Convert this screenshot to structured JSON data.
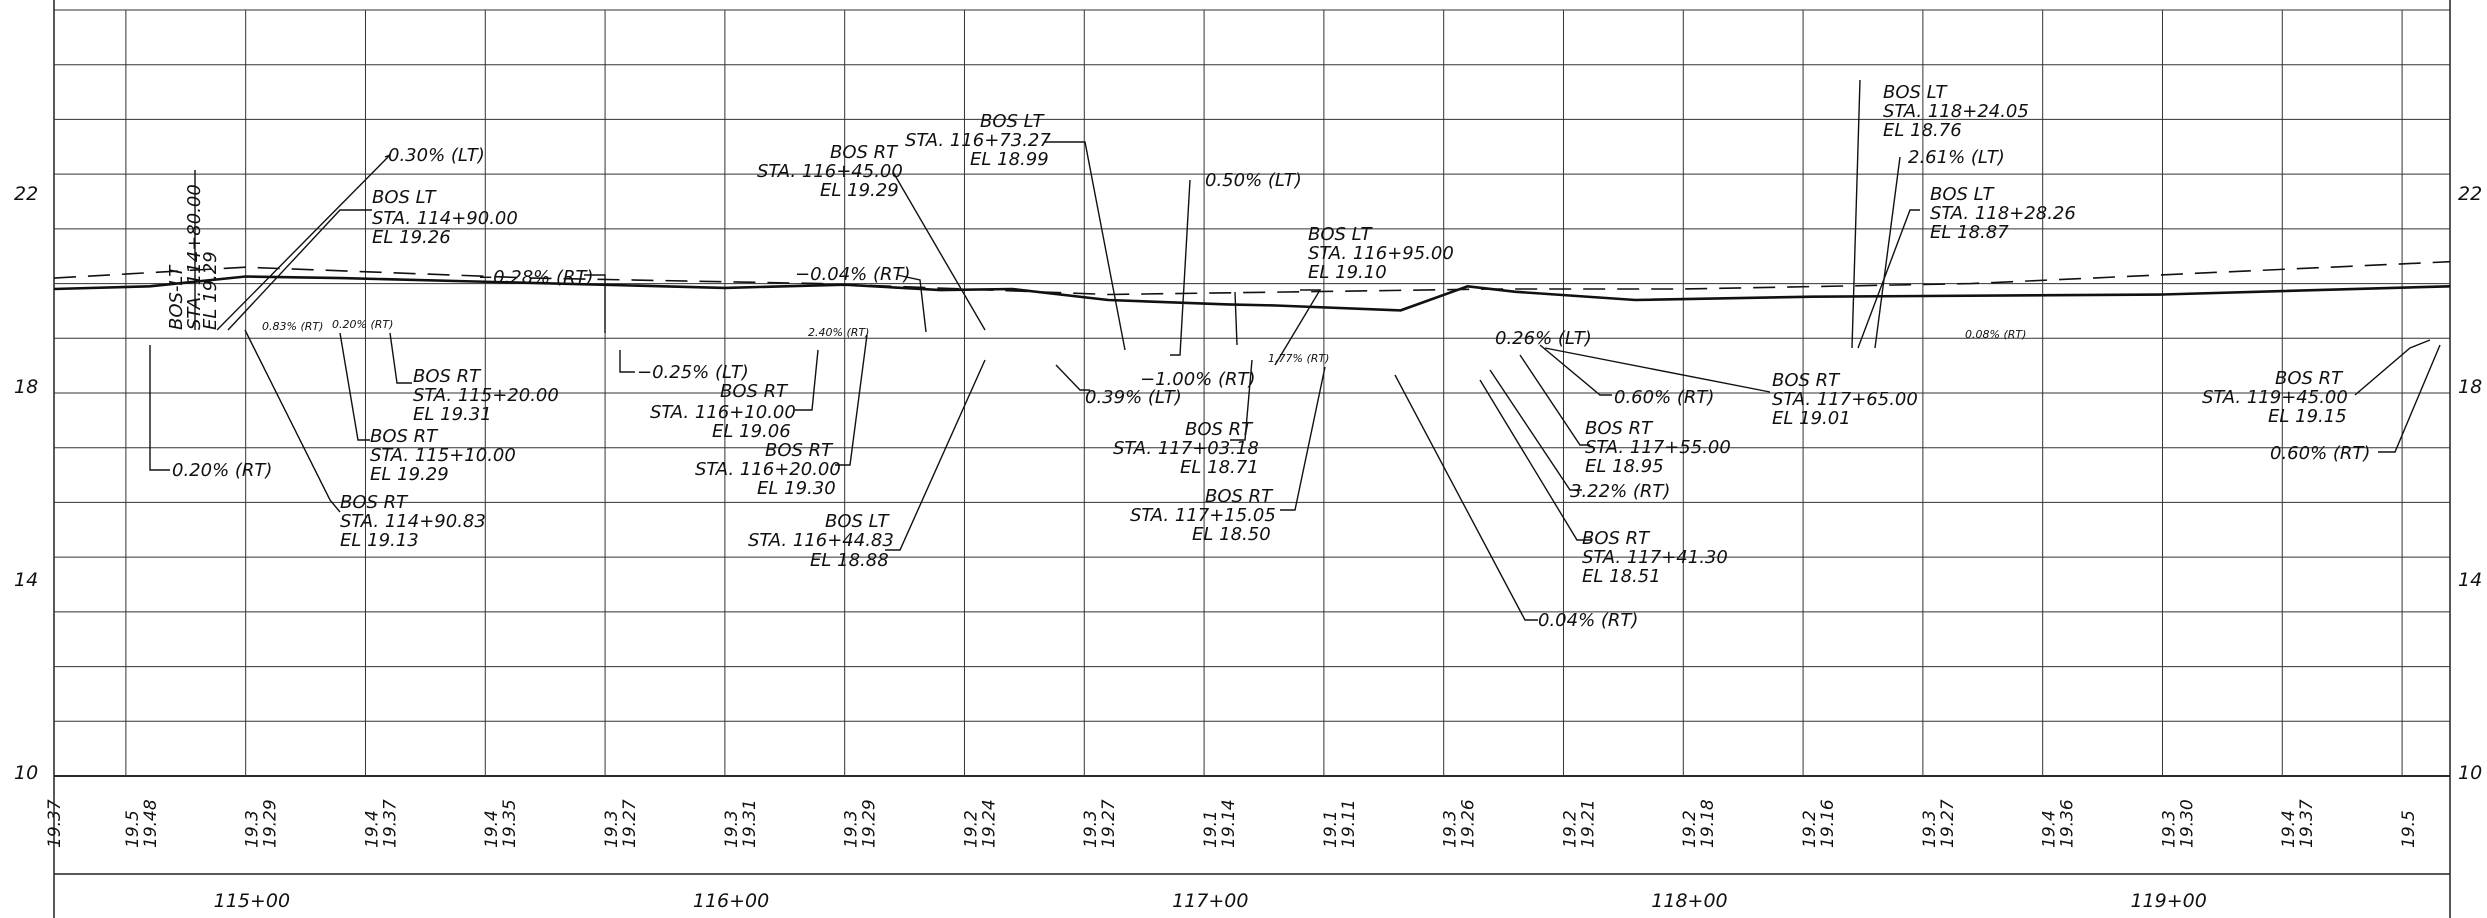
{
  "profile": {
    "y_axis": {
      "min": 10,
      "max": 24,
      "ticks": [
        22,
        18,
        14,
        10
      ],
      "tick_labels": [
        "22",
        "18",
        "14",
        "10"
      ]
    },
    "x_axis": {
      "start": 11460,
      "end": 11960,
      "ticks": [
        11500,
        11600,
        11700,
        11800,
        11900
      ],
      "tick_labels": [
        "115+00",
        "116+00",
        "117+00",
        "118+00",
        "119+00"
      ]
    },
    "proposed_line": [
      [
        11460,
        18.9
      ],
      [
        11480,
        18.95
      ],
      [
        11500,
        19.13
      ],
      [
        11520,
        19.1
      ],
      [
        11600,
        18.92
      ],
      [
        11625,
        18.98
      ],
      [
        11645,
        18.88
      ],
      [
        11660,
        18.9
      ],
      [
        11680,
        18.7
      ],
      [
        11705,
        18.62
      ],
      [
        11715,
        18.6
      ],
      [
        11741,
        18.51
      ],
      [
        11755,
        18.95
      ],
      [
        11765,
        18.85
      ],
      [
        11790,
        18.7
      ],
      [
        11827,
        18.76
      ],
      [
        11900,
        18.8
      ],
      [
        11960,
        18.95
      ]
    ],
    "existing_line": [
      [
        11460,
        19.1
      ],
      [
        11500,
        19.3
      ],
      [
        11560,
        19.1
      ],
      [
        11620,
        19.0
      ],
      [
        11680,
        18.8
      ],
      [
        11720,
        18.85
      ],
      [
        11760,
        18.9
      ],
      [
        11800,
        18.9
      ],
      [
        11860,
        19.0
      ],
      [
        11960,
        19.4
      ]
    ],
    "elevation_rows": [
      {
        "station": "11460",
        "existing": "",
        "proposed": "19.37"
      },
      {
        "station": "11480",
        "existing": "19.5",
        "proposed": "19.48"
      },
      {
        "station": "11505",
        "existing": "19.3",
        "proposed": "19.29"
      },
      {
        "station": "11530",
        "existing": "19.4",
        "proposed": "19.37"
      },
      {
        "station": "11555",
        "existing": "19.4",
        "proposed": "19.35"
      },
      {
        "station": "11580",
        "existing": "19.3",
        "proposed": "19.27"
      },
      {
        "station": "11605",
        "existing": "19.3",
        "proposed": "19.31"
      },
      {
        "station": "11630",
        "existing": "19.3",
        "proposed": "19.29"
      },
      {
        "station": "11655",
        "existing": "19.2",
        "proposed": "19.24"
      },
      {
        "station": "11680",
        "existing": "19.3",
        "proposed": "19.27"
      },
      {
        "station": "11705",
        "existing": "19.1",
        "proposed": "19.14"
      },
      {
        "station": "11730",
        "existing": "19.1",
        "proposed": "19.11"
      },
      {
        "station": "11755",
        "existing": "19.3",
        "proposed": "19.26"
      },
      {
        "station": "11780",
        "existing": "19.2",
        "proposed": "19.21"
      },
      {
        "station": "11805",
        "existing": "19.2",
        "proposed": "19.18"
      },
      {
        "station": "11830",
        "existing": "19.2",
        "proposed": "19.16"
      },
      {
        "station": "11855",
        "existing": "19.3",
        "proposed": "19.27"
      },
      {
        "station": "11880",
        "existing": "19.4",
        "proposed": "19.36"
      },
      {
        "station": "11905",
        "existing": "19.3",
        "proposed": "19.30"
      },
      {
        "station": "11930",
        "existing": "19.4",
        "proposed": "19.37"
      },
      {
        "station": "11955",
        "existing": "19.5",
        "proposed": ""
      }
    ],
    "annotations": {
      "bos_lt_11480": {
        "title": "BOS-LT",
        "sta": "STA. 114+80.00",
        "el": "EL 19.29"
      },
      "slope_030": "0.30% (LT)",
      "bos_lt_11490": {
        "title": "BOS LT",
        "sta": "STA. 114+90.00",
        "el": "EL 19.26"
      },
      "slope_028": "−0.28% (RT)",
      "slope_083": "0.83% (RT)",
      "slope_020_small": "0.20% (RT)",
      "bos_rt_11520": {
        "title": "BOS RT",
        "sta": "STA. 115+20.00",
        "el": "EL 19.31"
      },
      "bos_rt_11510": {
        "title": "BOS RT",
        "sta": "STA. 115+10.00",
        "el": "EL 19.29"
      },
      "slope_020": "0.20% (RT)",
      "bos_rt_114_90_83": {
        "title": "BOS RT",
        "sta": "STA. 114+90.83",
        "el": "EL 19.13"
      },
      "slope_004_rt": "−0.04% (RT)",
      "slope_025": "−0.25% (LT)",
      "slope_240": "2.40% (RT)",
      "bos_rt_11610": {
        "title": "BOS RT",
        "sta": "STA. 116+10.00",
        "el": "EL 19.06"
      },
      "bos_rt_11620": {
        "title": "BOS RT",
        "sta": "STA. 116+20.00",
        "el": "EL 19.30"
      },
      "bos_rt_11645": {
        "title": "BOS RT",
        "sta": "STA. 116+45.00",
        "el": "EL 19.29"
      },
      "bos_lt_11673": {
        "title": "BOS LT",
        "sta": "STA. 116+73.27",
        "el": "EL 18.99"
      },
      "bos_lt_116_44_83": {
        "title": "BOS LT",
        "sta": "STA. 116+44.83",
        "el": "EL 18.88"
      },
      "slope_050": "0.50% (LT)",
      "bos_lt_11695": {
        "title": "BOS LT",
        "sta": "STA. 116+95.00",
        "el": "EL 19.10"
      },
      "slope_039": "0.39% (LT)",
      "slope_100": "−1.00% (RT)",
      "slope_177": "1.77% (RT)",
      "bos_rt_11703": {
        "title": "BOS RT",
        "sta": "STA. 117+03.18",
        "el": "EL 18.71"
      },
      "bos_rt_11715": {
        "title": "BOS RT",
        "sta": "STA. 117+15.05",
        "el": "EL 18.50"
      },
      "slope_026": "0.26% (LT)",
      "slope_060_rt": "0.60% (RT)",
      "bos_rt_11755": {
        "title": "BOS RT",
        "sta": "STA. 117+55.00",
        "el": "EL 18.95"
      },
      "slope_322": "3.22% (RT)",
      "bos_rt_11741": {
        "title": "BOS RT",
        "sta": "STA. 117+41.30",
        "el": "EL 18.51"
      },
      "slope_004_bottom": "0.04% (RT)",
      "bos_rt_11765": {
        "title": "BOS RT",
        "sta": "STA. 117+65.00",
        "el": "EL 19.01"
      },
      "bos_lt_11824": {
        "title": "BOS LT",
        "sta": "STA. 118+24.05",
        "el": "EL 18.76"
      },
      "slope_261": "2.61% (LT)",
      "bos_lt_11828": {
        "title": "BOS LT",
        "sta": "STA. 118+28.26",
        "el": "EL 18.87"
      },
      "slope_008": "0.08% (RT)",
      "bos_rt_11945": {
        "title": "BOS RT",
        "sta": "STA. 119+45.00",
        "el": "EL 19.15"
      },
      "slope_060_right": "0.60% (RT)"
    }
  }
}
